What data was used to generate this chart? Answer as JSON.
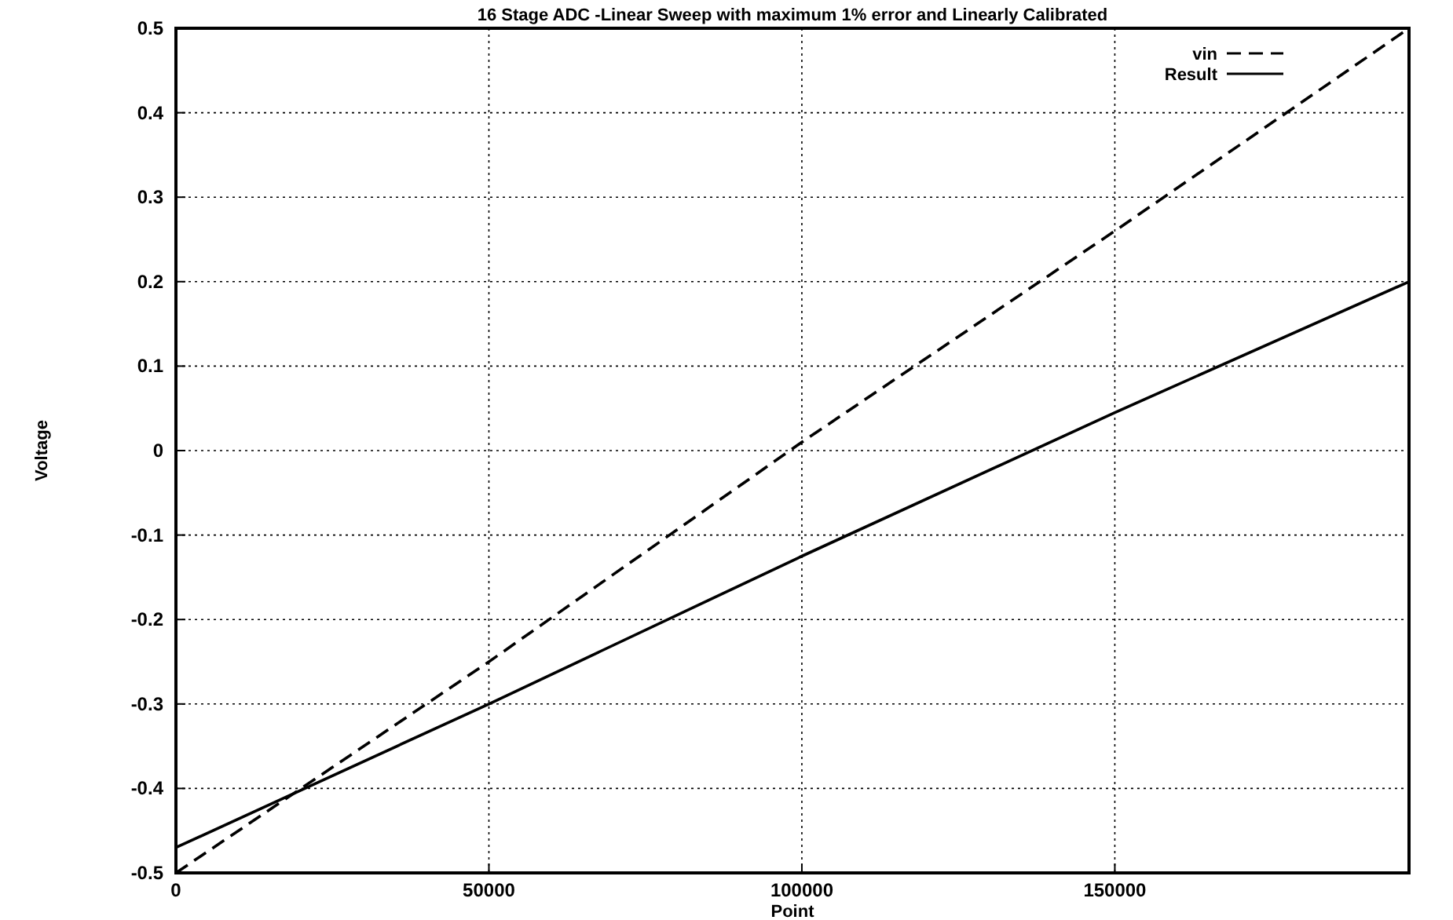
{
  "chart_data": {
    "type": "line",
    "title": "16 Stage ADC -Linear Sweep with maximum 1% error and Linearly Calibrated",
    "xlabel": "Point",
    "ylabel": "Voltage",
    "xlim": [
      0,
      197000
    ],
    "ylim": [
      -0.5,
      0.5
    ],
    "xticks": [
      0,
      50000,
      100000,
      150000
    ],
    "yticks": [
      -0.5,
      -0.4,
      -0.3,
      -0.2,
      -0.1,
      0,
      0.1,
      0.2,
      0.3,
      0.4,
      0.5
    ],
    "grid": true,
    "legend": "top right",
    "x": [
      0,
      50000,
      100000,
      150000,
      197000
    ],
    "series": [
      {
        "name": "vin",
        "color": "#000000",
        "line_style": "dashed",
        "values": [
          -0.5,
          -0.25,
          0.01,
          0.26,
          0.5
        ]
      },
      {
        "name": "Result",
        "color": "#000000",
        "line_style": "solid",
        "values": [
          -0.47,
          -0.3,
          -0.125,
          0.045,
          0.2
        ]
      }
    ]
  }
}
